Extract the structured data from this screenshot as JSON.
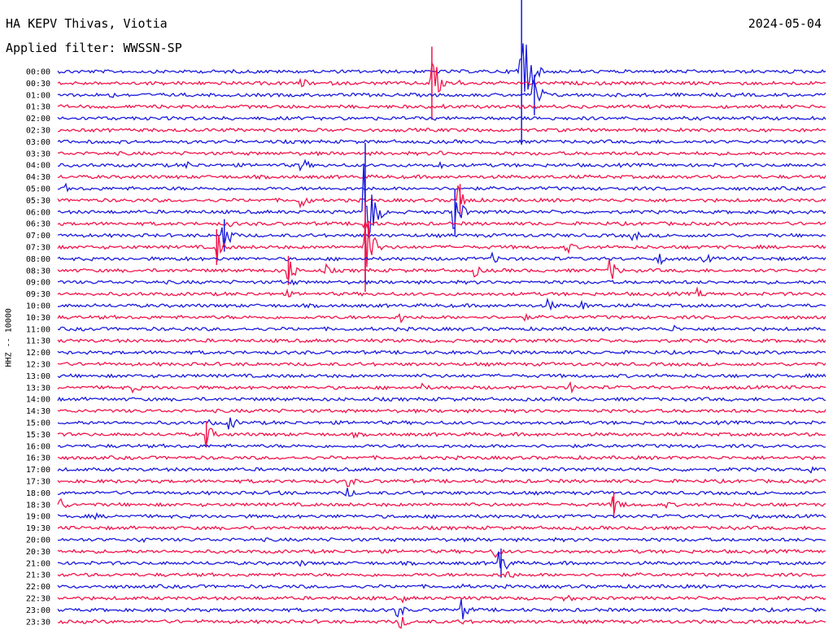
{
  "header": {
    "station": "HA KEPV Thivas, Viotia",
    "filter": "Applied filter: WWSSN-SP",
    "date": "2024-05-04",
    "channel": "HHZ -- 10000"
  },
  "chart_data": {
    "type": "line",
    "title": "HA KEPV Thivas, Viotia",
    "subtitle": "Applied filter: WWSSN-SP",
    "date": "2024-05-04",
    "ylabel": "HHZ -- 10000",
    "row_labels": [
      "00:00",
      "00:30",
      "01:00",
      "01:30",
      "02:00",
      "02:30",
      "03:00",
      "03:30",
      "04:00",
      "04:30",
      "05:00",
      "05:30",
      "06:00",
      "06:30",
      "07:00",
      "07:30",
      "08:00",
      "08:30",
      "09:00",
      "09:30",
      "10:00",
      "10:30",
      "11:00",
      "11:30",
      "12:00",
      "12:30",
      "13:00",
      "13:30",
      "14:00",
      "14:30",
      "15:00",
      "15:30",
      "16:00",
      "16:30",
      "17:00",
      "17:30",
      "18:00",
      "18:30",
      "19:00",
      "19:30",
      "20:00",
      "20:30",
      "21:00",
      "21:30",
      "22:00",
      "22:30",
      "23:00",
      "23:30"
    ],
    "row_minutes": 30,
    "colors": [
      "#1a1adc",
      "#f0144b"
    ],
    "grid": false,
    "events": [
      {
        "row": 0,
        "minute": 18.0,
        "amp": 5
      },
      {
        "row": 0,
        "minute": 18.1,
        "amp": 90
      },
      {
        "row": 1,
        "minute": 9.5,
        "amp": 8
      },
      {
        "row": 1,
        "minute": 14.6,
        "amp": 45
      },
      {
        "row": 1,
        "minute": 15.7,
        "amp": 4
      },
      {
        "row": 2,
        "minute": 2.0,
        "amp": 6
      },
      {
        "row": 2,
        "minute": 18.6,
        "amp": 25
      },
      {
        "row": 3,
        "minute": 15.0,
        "amp": 4
      },
      {
        "row": 4,
        "minute": 19.3,
        "amp": 3
      },
      {
        "row": 7,
        "minute": 15.0,
        "amp": 3
      },
      {
        "row": 8,
        "minute": 9.5,
        "amp": 12
      },
      {
        "row": 8,
        "minute": 14.8,
        "amp": 8
      },
      {
        "row": 8,
        "minute": 5.0,
        "amp": 6
      },
      {
        "row": 10,
        "minute": 0.3,
        "amp": 6
      },
      {
        "row": 10,
        "minute": 4.5,
        "amp": 3
      },
      {
        "row": 11,
        "minute": 9.5,
        "amp": 14
      },
      {
        "row": 11,
        "minute": 15.7,
        "amp": 20
      },
      {
        "row": 12,
        "minute": 15.5,
        "amp": 28
      },
      {
        "row": 12,
        "minute": 12.0,
        "amp": 85
      },
      {
        "row": 13,
        "minute": 6.8,
        "amp": 5
      },
      {
        "row": 13,
        "minute": 12.0,
        "amp": 10
      },
      {
        "row": 14,
        "minute": 6.5,
        "amp": 20
      },
      {
        "row": 14,
        "minute": 22.5,
        "amp": 8
      },
      {
        "row": 15,
        "minute": 6.2,
        "amp": 22
      },
      {
        "row": 15,
        "minute": 12.3,
        "amp": 12
      },
      {
        "row": 15,
        "minute": 12.0,
        "amp": 55
      },
      {
        "row": 15,
        "minute": 19.9,
        "amp": 8
      },
      {
        "row": 16,
        "minute": 17.0,
        "amp": 7
      },
      {
        "row": 16,
        "minute": 23.5,
        "amp": 8
      },
      {
        "row": 16,
        "minute": 25.3,
        "amp": 7
      },
      {
        "row": 16,
        "minute": 5.0,
        "amp": 3
      },
      {
        "row": 17,
        "minute": 9.0,
        "amp": 18
      },
      {
        "row": 17,
        "minute": 10.5,
        "amp": 8
      },
      {
        "row": 17,
        "minute": 16.3,
        "amp": 8
      },
      {
        "row": 17,
        "minute": 21.6,
        "amp": 14
      },
      {
        "row": 18,
        "minute": 9.1,
        "amp": 6
      },
      {
        "row": 19,
        "minute": 9.0,
        "amp": 5
      },
      {
        "row": 19,
        "minute": 25.0,
        "amp": 7
      },
      {
        "row": 20,
        "minute": 19.2,
        "amp": 8
      },
      {
        "row": 20,
        "minute": 20.5,
        "amp": 6
      },
      {
        "row": 21,
        "minute": 13.4,
        "amp": 7
      },
      {
        "row": 21,
        "minute": 18.3,
        "amp": 4
      },
      {
        "row": 22,
        "minute": 24.0,
        "amp": 6
      },
      {
        "row": 22,
        "minute": 5.0,
        "amp": 3
      },
      {
        "row": 27,
        "minute": 3.0,
        "amp": 7
      },
      {
        "row": 27,
        "minute": 14.3,
        "amp": 5
      },
      {
        "row": 27,
        "minute": 20.0,
        "amp": 7
      },
      {
        "row": 29,
        "minute": 8.0,
        "amp": 5
      },
      {
        "row": 30,
        "minute": 6.0,
        "amp": 4
      },
      {
        "row": 30,
        "minute": 6.7,
        "amp": 12
      },
      {
        "row": 31,
        "minute": 5.8,
        "amp": 16
      },
      {
        "row": 31,
        "minute": 11.6,
        "amp": 4
      },
      {
        "row": 34,
        "minute": 9.3,
        "amp": 3
      },
      {
        "row": 34,
        "minute": 29.4,
        "amp": 4
      },
      {
        "row": 35,
        "minute": 2.1,
        "amp": 3
      },
      {
        "row": 35,
        "minute": 11.3,
        "amp": 10
      },
      {
        "row": 36,
        "minute": 11.3,
        "amp": 9
      },
      {
        "row": 36,
        "minute": 8.7,
        "amp": 4
      },
      {
        "row": 37,
        "minute": 21.7,
        "amp": 16
      },
      {
        "row": 37,
        "minute": 23.8,
        "amp": 4
      },
      {
        "row": 37,
        "minute": 0.1,
        "amp": 10
      },
      {
        "row": 38,
        "minute": 1.5,
        "amp": 4
      },
      {
        "row": 38,
        "minute": 27.0,
        "amp": 4
      },
      {
        "row": 39,
        "minute": 23.0,
        "amp": 6
      },
      {
        "row": 39,
        "minute": 26.2,
        "amp": 5
      },
      {
        "row": 40,
        "minute": 3.2,
        "amp": 6
      },
      {
        "row": 41,
        "minute": 17.1,
        "amp": 8
      },
      {
        "row": 42,
        "minute": 17.3,
        "amp": 18
      },
      {
        "row": 42,
        "minute": 9.5,
        "amp": 5
      },
      {
        "row": 43,
        "minute": 17.5,
        "amp": 10
      },
      {
        "row": 44,
        "minute": 13.4,
        "amp": 4
      },
      {
        "row": 44,
        "minute": 15.9,
        "amp": 4
      },
      {
        "row": 45,
        "minute": 19.8,
        "amp": 8
      },
      {
        "row": 45,
        "minute": 13.5,
        "amp": 5
      },
      {
        "row": 46,
        "minute": 13.3,
        "amp": 10
      },
      {
        "row": 46,
        "minute": 15.8,
        "amp": 14
      },
      {
        "row": 47,
        "minute": 13.4,
        "amp": 10
      },
      {
        "row": 47,
        "minute": 15.9,
        "amp": 6
      }
    ]
  }
}
